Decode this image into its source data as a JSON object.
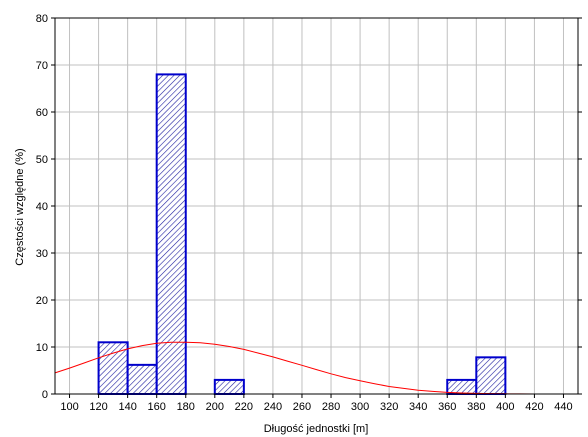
{
  "chart_data": {
    "type": "bar",
    "title": "",
    "xlabel": "Długość jednostki [m]",
    "ylabel": "Częstości względne (%)",
    "xlim": [
      90,
      450
    ],
    "ylim": [
      0,
      80
    ],
    "x_ticks": [
      100,
      120,
      140,
      160,
      180,
      200,
      220,
      240,
      260,
      280,
      300,
      320,
      340,
      360,
      380,
      400,
      420,
      440
    ],
    "y_ticks": [
      0,
      10,
      20,
      30,
      40,
      50,
      60,
      70,
      80
    ],
    "grid": true,
    "bins": [
      {
        "from": 120,
        "to": 140,
        "value": 11
      },
      {
        "from": 140,
        "to": 160,
        "value": 6.2
      },
      {
        "from": 160,
        "to": 180,
        "value": 68
      },
      {
        "from": 200,
        "to": 220,
        "value": 3
      },
      {
        "from": 360,
        "to": 380,
        "value": 3
      },
      {
        "from": 380,
        "to": 400,
        "value": 7.8
      }
    ],
    "normal_curve": {
      "x": [
        90,
        100,
        110,
        120,
        130,
        140,
        150,
        160,
        170,
        180,
        190,
        200,
        210,
        220,
        230,
        240,
        250,
        260,
        270,
        280,
        290,
        300,
        310,
        320,
        330,
        340,
        350,
        360,
        370,
        380,
        390,
        400,
        410,
        420,
        430,
        440,
        450
      ],
      "y": [
        4.5,
        5.5,
        6.6,
        7.7,
        8.7,
        9.6,
        10.3,
        10.8,
        11.0,
        11.0,
        10.9,
        10.6,
        10.1,
        9.5,
        8.7,
        7.9,
        7.0,
        6.1,
        5.2,
        4.3,
        3.5,
        2.8,
        2.2,
        1.6,
        1.2,
        0.8,
        0.55,
        0.35,
        0.22,
        0.13,
        0.08,
        0.04,
        0.02,
        0.01,
        0.005,
        0.0,
        0.0
      ]
    },
    "colors": {
      "bar_stroke": "#0000cc",
      "bar_fill": "#ffffff",
      "hatch": "#2020a0",
      "curve": "#ff0000",
      "grid": "#c0c0c0",
      "axis": "#000000"
    }
  }
}
